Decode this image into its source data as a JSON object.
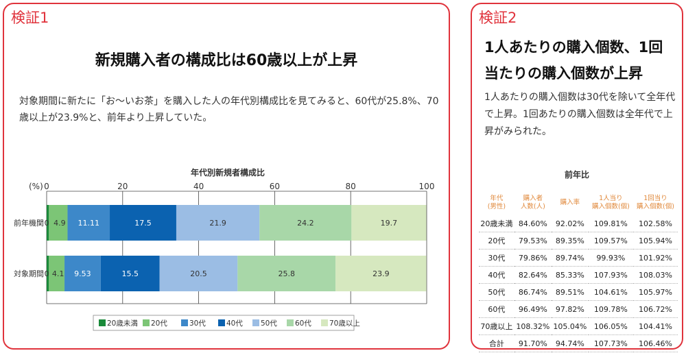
{
  "left_panel": {
    "tag": "検証1",
    "heading": "新規購入者の構成比は60歳以上が上昇",
    "paragraph": "対象期間に新たに「お〜いお茶」を購入した人の年代別構成比を見てみると、60代が25.8%、70歳以上が23.9%と、前年より上昇していた。"
  },
  "chart_data": {
    "type": "bar",
    "orientation": "horizontal-stacked",
    "title": "年代別新規者構成比",
    "unit_label": "(%)",
    "xlim": [
      0,
      100
    ],
    "x_ticks": [
      0,
      20,
      40,
      60,
      80,
      100
    ],
    "categories": [
      "前年機関",
      "対象期間"
    ],
    "series": [
      {
        "name": "20歳未満",
        "color": "#1a8a3a",
        "values": [
          0.6,
          0.6
        ],
        "labels": [
          "0.6",
          "0.6"
        ]
      },
      {
        "name": "20代",
        "color": "#7cc576",
        "values": [
          4.9,
          4.1
        ],
        "labels": [
          "4.9",
          "4.1"
        ]
      },
      {
        "name": "30代",
        "color": "#3d88c9",
        "values": [
          11.11,
          9.53
        ],
        "labels": [
          "11.11",
          "9.53"
        ]
      },
      {
        "name": "40代",
        "color": "#0b62b0",
        "values": [
          17.5,
          15.5
        ],
        "labels": [
          "17.5",
          "15.5"
        ]
      },
      {
        "name": "50代",
        "color": "#9bbde4",
        "values": [
          21.9,
          20.5
        ],
        "labels": [
          "21.9",
          "20.5"
        ]
      },
      {
        "name": "60代",
        "color": "#a8d7a8",
        "values": [
          24.2,
          25.8
        ],
        "labels": [
          "24.2",
          "25.8"
        ]
      },
      {
        "name": "70歳以上",
        "color": "#d6e8bf",
        "values": [
          19.7,
          23.9
        ],
        "labels": [
          "19.7",
          "23.9"
        ]
      }
    ],
    "legend_position": "bottom",
    "grid": true
  },
  "right_panel": {
    "tag": "検証2",
    "heading": "1人あたりの購入個数、1回当たりの購入個数が上昇",
    "paragraph": "1人あたりの購入個数は30代を除いて全年代で上昇。1回あたりの購入個数は全年代で上昇がみられた。",
    "table": {
      "title": "前年比",
      "headers": [
        "年代\n(男性)",
        "購入者\n人数(人)",
        "購入率",
        "1人当り\n購入個数(個)",
        "1回当り\n購入個数(個)"
      ],
      "rows": [
        [
          "20歳未満",
          "84.60%",
          "92.02%",
          "109.81%",
          "102.58%"
        ],
        [
          "20代",
          "79.53%",
          "89.35%",
          "109.57%",
          "105.94%"
        ],
        [
          "30代",
          "79.86%",
          "89.74%",
          "99.93%",
          "101.92%"
        ],
        [
          "40代",
          "82.64%",
          "85.33%",
          "107.93%",
          "108.03%"
        ],
        [
          "50代",
          "86.74%",
          "89.51%",
          "104.61%",
          "105.97%"
        ],
        [
          "60代",
          "96.49%",
          "97.82%",
          "109.78%",
          "106.72%"
        ],
        [
          "70歳以上",
          "108.32%",
          "105.04%",
          "106.05%",
          "104.41%"
        ],
        [
          "合計",
          "91.70%",
          "94.74%",
          "107.73%",
          "106.46%"
        ]
      ]
    }
  }
}
